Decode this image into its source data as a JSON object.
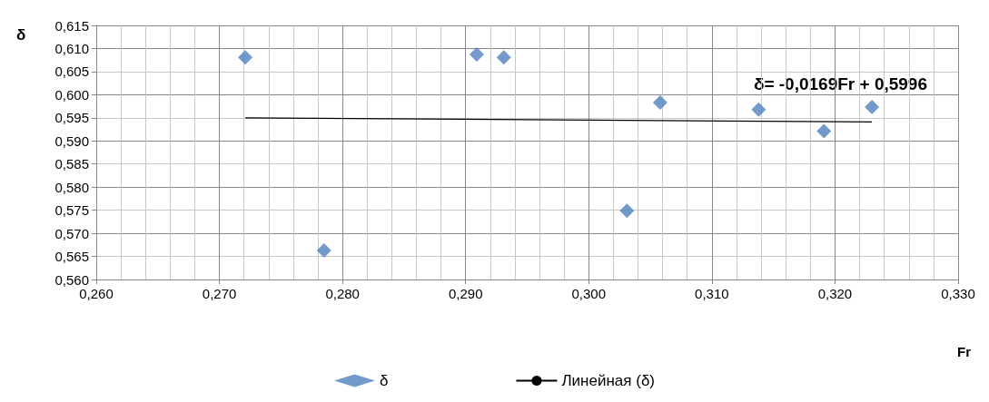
{
  "chart_data": {
    "type": "scatter",
    "xlabel": "Fr",
    "ylabel": "δ",
    "annotations": [
      "δ= -0,0169Fr + 0,5996"
    ],
    "x": [
      0.2721,
      0.2785,
      0.2909,
      0.2931,
      0.3031,
      0.3058,
      0.3138,
      0.3191,
      0.323
    ],
    "series": [
      {
        "name": "δ",
        "color": "#4f81bd",
        "marker": "diamond",
        "values": [
          0.6081,
          0.5663,
          0.6087,
          0.6081,
          0.5749,
          0.5983,
          0.5968,
          0.5921,
          0.5973
        ]
      },
      {
        "name": "Линейная (δ)",
        "type": "line",
        "color": "#000000",
        "marker": "none",
        "line_style": "solid",
        "x": [
          0.2721,
          0.323
        ],
        "values": [
          0.595,
          0.5941
        ]
      }
    ],
    "xlim": [
      0.26,
      0.33
    ],
    "xticks": [
      {
        "value": 0.26,
        "label": "0,260"
      },
      {
        "value": 0.27,
        "label": "0,270"
      },
      {
        "value": 0.28,
        "label": "0,280"
      },
      {
        "value": 0.29,
        "label": "0,290"
      },
      {
        "value": 0.3,
        "label": "0,300"
      },
      {
        "value": 0.31,
        "label": "0,310"
      },
      {
        "value": 0.32,
        "label": "0,320"
      },
      {
        "value": 0.33,
        "label": "0,330"
      }
    ],
    "ylim": [
      0.56,
      0.615
    ],
    "yticks": [
      {
        "value": 0.56,
        "label": "0,560"
      },
      {
        "value": 0.565,
        "label": "0,565"
      },
      {
        "value": 0.57,
        "label": "0,570"
      },
      {
        "value": 0.575,
        "label": "0,575"
      },
      {
        "value": 0.58,
        "label": "0,580"
      },
      {
        "value": 0.585,
        "label": "0,585"
      },
      {
        "value": 0.59,
        "label": "0,590"
      },
      {
        "value": 0.595,
        "label": "0,595"
      },
      {
        "value": 0.6,
        "label": "0,600"
      },
      {
        "value": 0.605,
        "label": "0,605"
      },
      {
        "value": 0.61,
        "label": "0,610"
      },
      {
        "value": 0.615,
        "label": "0,615"
      }
    ],
    "grid": true,
    "legend": "bottom"
  }
}
